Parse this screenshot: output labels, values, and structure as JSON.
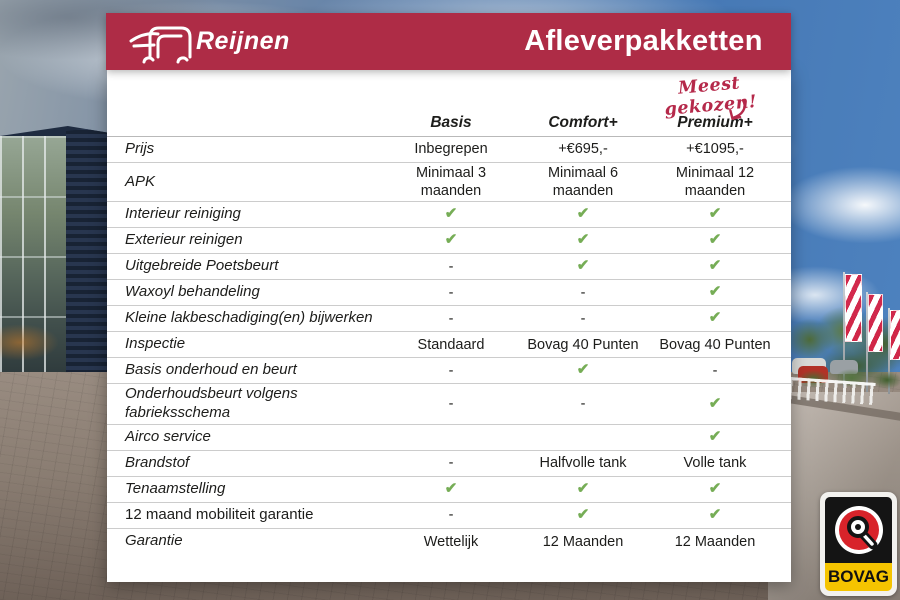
{
  "header": {
    "brand": "Reijnen",
    "title": "Afleverpakketten"
  },
  "annotation": {
    "text": "Meest gekozen!"
  },
  "table": {
    "columns": [
      "Basis",
      "Comfort+",
      "Premium+"
    ],
    "rows": [
      {
        "label": "Prijs",
        "values": [
          "Inbegrepen",
          "+€695,-",
          "+€1095,-"
        ]
      },
      {
        "label": "APK",
        "values": [
          "Minimaal 3 maanden",
          "Minimaal 6 maanden",
          "Minimaal 12 maanden"
        ]
      },
      {
        "label": "Interieur reiniging",
        "values": [
          "check",
          "check",
          "check"
        ]
      },
      {
        "label": "Exterieur reinigen",
        "values": [
          "check",
          "check",
          "check"
        ]
      },
      {
        "label": "Uitgebreide Poetsbeurt",
        "values": [
          "-",
          "check",
          "check"
        ]
      },
      {
        "label": "Waxoyl behandeling",
        "values": [
          "-",
          "-",
          "check"
        ]
      },
      {
        "label": "Kleine lakbeschadiging(en) bijwerken",
        "values": [
          "-",
          "-",
          "check"
        ]
      },
      {
        "label": "Inspectie",
        "values": [
          "Standaard",
          "Bovag 40 Punten",
          "Bovag 40 Punten"
        ]
      },
      {
        "label": "Basis onderhoud en beurt",
        "values": [
          "-",
          "check",
          "-"
        ]
      },
      {
        "label": "Onderhoudsbeurt volgens fabrieksschema",
        "values": [
          "-",
          "-",
          "check"
        ]
      },
      {
        "label": "Airco service",
        "values": [
          "",
          "",
          "check"
        ]
      },
      {
        "label": "Brandstof",
        "values": [
          "-",
          "Halfvolle tank",
          "Volle tank"
        ]
      },
      {
        "label": "Tenaamstelling",
        "values": [
          "check",
          "check",
          "check"
        ]
      },
      {
        "label": "12 maand mobiliteit garantie",
        "values": [
          "-",
          "check",
          "check"
        ],
        "upright": true
      },
      {
        "label": "Garantie",
        "values": [
          "Wettelijk",
          "12 Maanden",
          "12 Maanden"
        ]
      }
    ]
  },
  "badge": {
    "text": "BOVAG"
  },
  "colors": {
    "header_red": "#ae2c46",
    "annotation_red": "#b5294a",
    "check_green": "#76ad56",
    "bovag_yellow": "#f5c400",
    "bovag_red": "#d8232a",
    "text": "#1d1d1b"
  }
}
